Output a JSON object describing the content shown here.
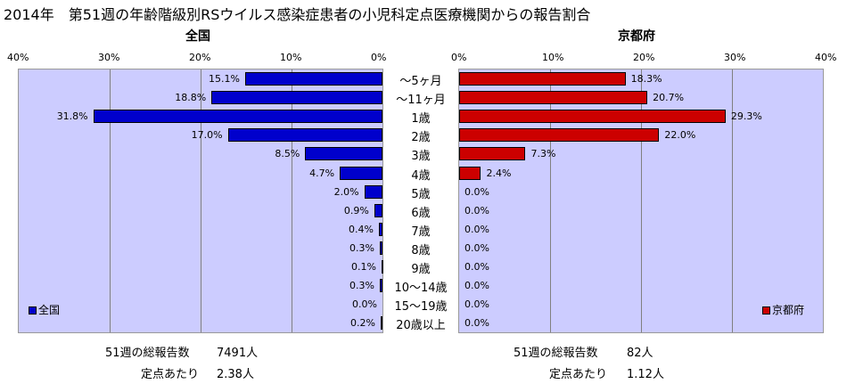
{
  "title": "2014年　第51週の年齢階級別RSウイルス感染症患者の小児科定点医療機関からの報告割合",
  "chart_data": {
    "type": "bar",
    "categories": [
      "～5ヶ月",
      "～11ヶ月",
      "1歳",
      "2歳",
      "3歳",
      "4歳",
      "5歳",
      "6歳",
      "7歳",
      "8歳",
      "9歳",
      "10～14歳",
      "15～19歳",
      "20歳以上"
    ],
    "series": [
      {
        "name": "全国",
        "values": [
          15.1,
          18.8,
          31.8,
          17.0,
          8.5,
          4.7,
          2.0,
          0.9,
          0.4,
          0.3,
          0.1,
          0.3,
          0.0,
          0.2
        ],
        "color": "#0000cc"
      },
      {
        "name": "京都府",
        "values": [
          18.3,
          20.7,
          29.3,
          22.0,
          7.3,
          2.4,
          0.0,
          0.0,
          0.0,
          0.0,
          0.0,
          0.0,
          0.0,
          0.0
        ],
        "color": "#cc0000"
      }
    ],
    "data_labels_left": [
      "15.1%",
      "18.8%",
      "31.8%",
      "17.0%",
      "8.5%",
      "4.7%",
      "2.0%",
      "0.9%",
      "0.4%",
      "0.3%",
      "0.1%",
      "0.3%",
      "0.0%",
      "0.2%"
    ],
    "data_labels_right": [
      "18.3%",
      "20.7%",
      "29.3%",
      "22.0%",
      "7.3%",
      "2.4%",
      "0.0%",
      "0.0%",
      "0.0%",
      "0.0%",
      "0.0%",
      "0.0%",
      "0.0%",
      "0.0%"
    ],
    "left_ticks": [
      "40%",
      "30%",
      "20%",
      "10%",
      "0%"
    ],
    "right_ticks": [
      "0%",
      "10%",
      "20%",
      "30%",
      "40%"
    ],
    "xlim": [
      0,
      40
    ],
    "grid": true
  },
  "left_panel": {
    "title": "全国",
    "legend": "全国"
  },
  "right_panel": {
    "title": "京都府",
    "legend": "京都府"
  },
  "footer": {
    "left_total_label": "51週の総報告数",
    "left_total_value": "7491人",
    "left_per_label": "定点あたり",
    "left_per_value": "2.38人",
    "right_total_label": "51週の総報告数",
    "right_total_value": "82人",
    "right_per_label": "定点あたり",
    "right_per_value": "1.12人"
  }
}
